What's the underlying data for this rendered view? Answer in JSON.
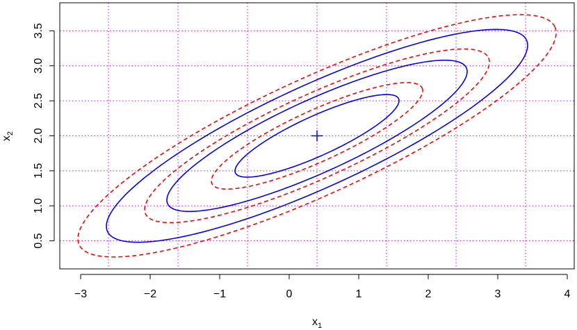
{
  "chart_data": {
    "type": "line",
    "title": "",
    "xlabel": "x",
    "xlabel_sub": "1",
    "ylabel": "x",
    "ylabel_sub": "2",
    "xlim": [
      -3.3,
      4.1
    ],
    "ylim": [
      0.1,
      3.9
    ],
    "x_ticks": [
      -3,
      -2,
      -1,
      0,
      1,
      2,
      3,
      4
    ],
    "x_tick_labels": [
      "−3",
      "−2",
      "−1",
      "0",
      "1",
      "2",
      "3",
      "4"
    ],
    "y_ticks": [
      0.5,
      1.0,
      1.5,
      2.0,
      2.5,
      3.0,
      3.5
    ],
    "y_tick_labels": [
      "0.5",
      "1.0",
      "1.5",
      "2.0",
      "2.5",
      "3.0",
      "3.5"
    ],
    "grid": {
      "x": [
        -2.6,
        -1.6,
        -0.6,
        0.4,
        1.4,
        2.4,
        3.4
      ],
      "y": [
        0.5,
        1.0,
        1.5,
        2.0,
        2.5,
        3.0,
        3.5
      ],
      "color": "#E000E0",
      "style": "dotted"
    },
    "center": {
      "x": 0.4,
      "y": 2.0,
      "marker": "+",
      "color": "#0000FF"
    },
    "series": [
      {
        "color": "#0000FF",
        "dash": "solid",
        "ellipses": [
          {
            "x_range": [
              -0.78,
              1.58
            ],
            "y_range": [
              1.41,
              2.59
            ]
          },
          {
            "x_range": [
              -1.76,
              2.56
            ],
            "y_range": [
              0.92,
              3.08
            ]
          },
          {
            "x_range": [
              -2.63,
              3.43
            ],
            "y_range": [
              0.48,
              3.52
            ]
          }
        ]
      },
      {
        "color": "#FF0000",
        "dash": "dashed",
        "ellipses": [
          {
            "x_range": [
              -1.12,
              1.92
            ],
            "y_range": [
              1.24,
              2.76
            ]
          },
          {
            "x_range": [
              -2.08,
              2.88
            ],
            "y_range": [
              0.76,
              3.24
            ]
          },
          {
            "x_range": [
              -3.04,
              3.84
            ],
            "y_range": [
              0.27,
              3.73
            ]
          }
        ]
      }
    ]
  }
}
